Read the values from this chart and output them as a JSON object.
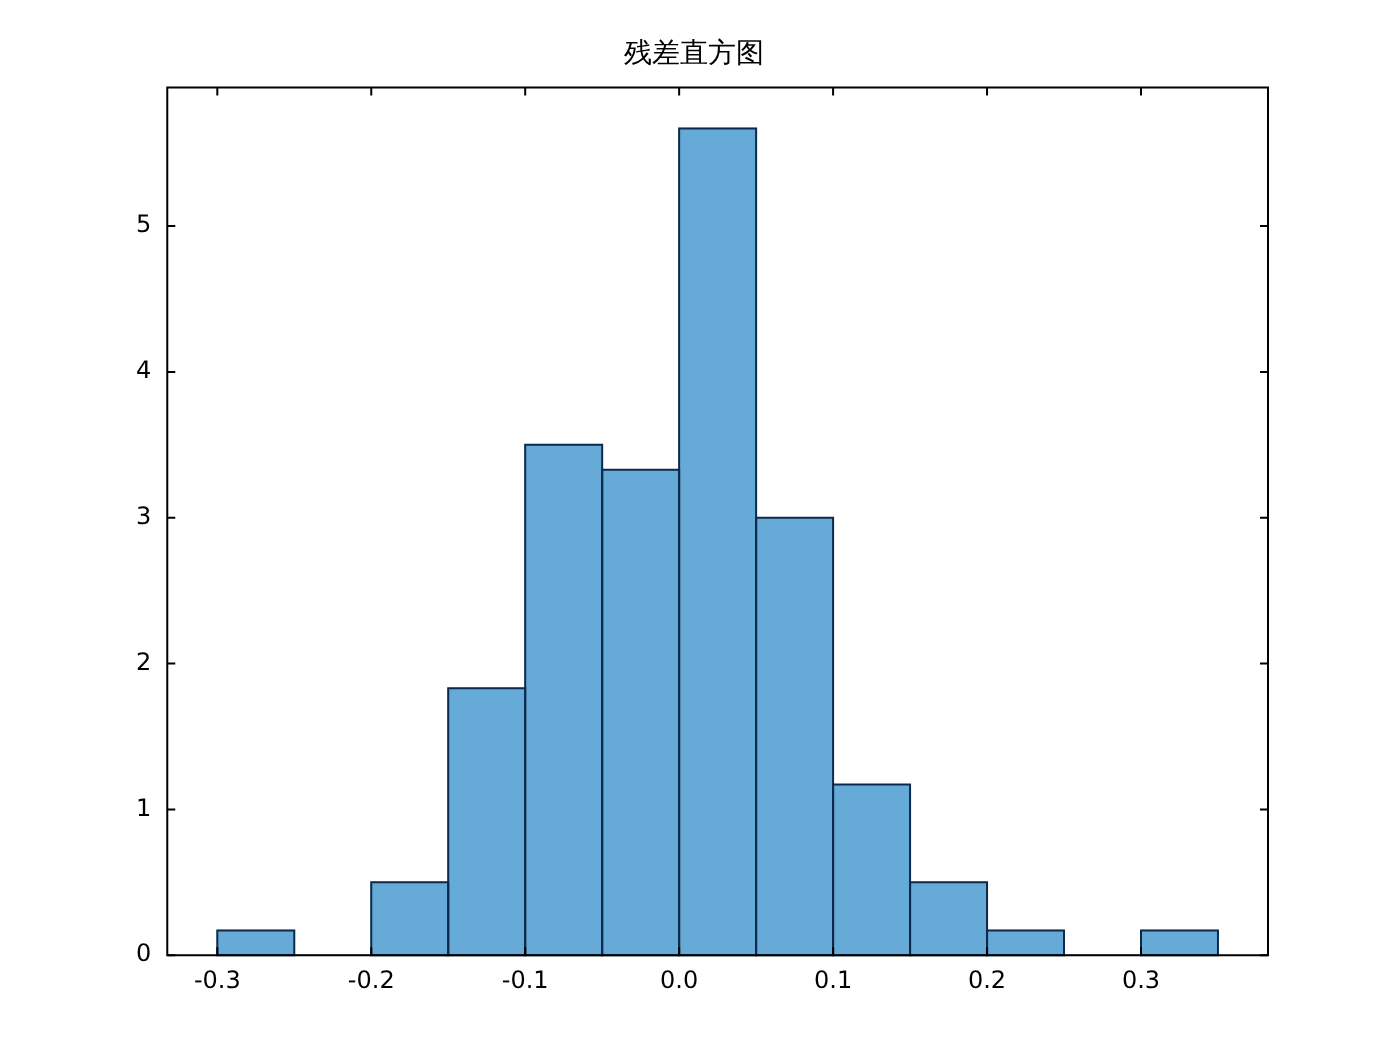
{
  "chart_data": {
    "type": "histogram",
    "title": "残差直方图",
    "bins": [
      -0.3,
      -0.25,
      -0.2,
      -0.15,
      -0.1,
      -0.05,
      0,
      0.05,
      0.1,
      0.15,
      0.2,
      0.25,
      0.3,
      0.35
    ],
    "values": [
      0.17,
      0,
      0.5,
      1.83,
      3.5,
      3.33,
      5.67,
      3.0,
      1.17,
      0.5,
      0.17,
      0,
      0.17
    ],
    "color": "#66aad8",
    "xlim": [
      -0.3325,
      0.3825
    ],
    "ylim": [
      0,
      5.95
    ],
    "xticks": [
      {
        "value": -0.3,
        "label": "-0.3"
      },
      {
        "value": -0.2,
        "label": "-0.2"
      },
      {
        "value": -0.1,
        "label": "-0.1"
      },
      {
        "value": 0,
        "label": "0.0"
      },
      {
        "value": 0.1,
        "label": "0.1"
      },
      {
        "value": 0.2,
        "label": "0.2"
      },
      {
        "value": 0.3,
        "label": "0.3"
      }
    ],
    "yticks": [
      0,
      1,
      2,
      3,
      4,
      5
    ],
    "grid": false,
    "legend": false
  }
}
